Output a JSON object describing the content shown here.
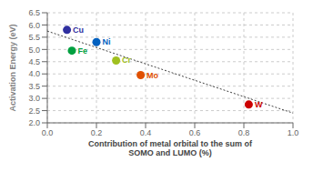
{
  "chart_data": {
    "type": "scatter",
    "x": [
      0.08,
      0.2,
      0.1,
      0.28,
      0.38,
      0.82
    ],
    "values": [
      5.8,
      5.3,
      4.95,
      4.55,
      3.95,
      2.75
    ],
    "labels": [
      "Cu",
      "Ni",
      "Fe",
      "Cr",
      "Mo",
      "W"
    ],
    "colors": [
      "#3030A0",
      "#0060C0",
      "#00A040",
      "#A0C020",
      "#E05000",
      "#CC0000"
    ],
    "trendline": {
      "x": [
        0.0,
        1.0
      ],
      "values": [
        5.75,
        2.4
      ],
      "color": "#404040",
      "line_style": "dotted"
    },
    "xlim": [
      0.0,
      1.0
    ],
    "ylim": [
      2.0,
      6.5
    ],
    "xticks": [
      {
        "value": 0,
        "label": "0.0"
      },
      0.2,
      0.4,
      0.6,
      0.8,
      {
        "value": 1,
        "label": "1.0"
      }
    ],
    "yticks": [
      {
        "value": 2,
        "label": "2.0"
      },
      2.5,
      {
        "value": 3,
        "label": "3.0"
      },
      3.5,
      {
        "value": 4,
        "label": "4.0"
      },
      4.5,
      {
        "value": 5,
        "label": "5.0"
      },
      5.5,
      {
        "value": 6,
        "label": "6.0"
      },
      6.5
    ],
    "xlabel": "Contribution of metal orbital to the sum of\nSOMO and LUMO (%)",
    "ylabel": "Activation Energy (eV)"
  }
}
